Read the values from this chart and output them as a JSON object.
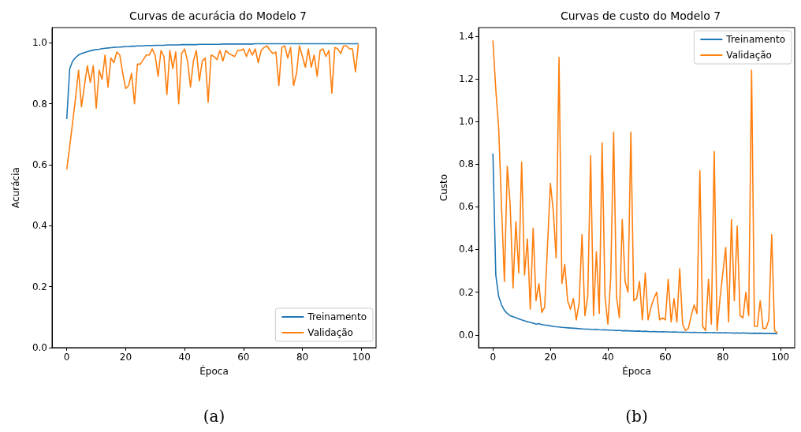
{
  "chart_data": [
    {
      "type": "line",
      "title": "Curvas de acurácia do Modelo 7",
      "xlabel": "Época",
      "ylabel": "Acurácia",
      "annotations": [
        "(a)"
      ],
      "legend": "bottom right",
      "grid": false,
      "x": [
        0,
        1,
        2,
        3,
        4,
        5,
        6,
        7,
        8,
        9,
        10,
        11,
        12,
        13,
        14,
        15,
        16,
        17,
        18,
        19,
        20,
        21,
        22,
        23,
        24,
        25,
        26,
        27,
        28,
        29,
        30,
        31,
        32,
        33,
        34,
        35,
        36,
        37,
        38,
        39,
        40,
        41,
        42,
        43,
        44,
        45,
        46,
        47,
        48,
        49,
        50,
        51,
        52,
        53,
        54,
        55,
        56,
        57,
        58,
        59,
        60,
        61,
        62,
        63,
        64,
        65,
        66,
        67,
        68,
        69,
        70,
        71,
        72,
        73,
        74,
        75,
        76,
        77,
        78,
        79,
        80,
        81,
        82,
        83,
        84,
        85,
        86,
        87,
        88,
        89,
        90,
        91,
        92,
        93,
        94,
        95,
        96,
        97,
        98,
        99
      ],
      "xlim": [
        -5,
        105
      ],
      "xticks": [
        0,
        20,
        40,
        60,
        80,
        100
      ],
      "ylim": [
        0,
        1.05
      ],
      "yticks": [
        {
          "value": 0,
          "label": "0.0"
        },
        {
          "value": 0.2,
          "label": "0.2"
        },
        {
          "value": 0.4,
          "label": "0.4"
        },
        {
          "value": 0.6,
          "label": "0.6"
        },
        {
          "value": 0.8,
          "label": "0.8"
        },
        {
          "value": 1,
          "label": "1.0"
        }
      ],
      "series": [
        {
          "name": "Treinamento",
          "color": "#1f77b4",
          "values": [
            0.75,
            0.915,
            0.94,
            0.952,
            0.96,
            0.965,
            0.968,
            0.971,
            0.974,
            0.976,
            0.978,
            0.979,
            0.981,
            0.982,
            0.983,
            0.984,
            0.985,
            0.986,
            0.986,
            0.987,
            0.988,
            0.988,
            0.989,
            0.989,
            0.99,
            0.99,
            0.99,
            0.991,
            0.991,
            0.991,
            0.992,
            0.992,
            0.992,
            0.992,
            0.993,
            0.993,
            0.993,
            0.993,
            0.993,
            0.994,
            0.994,
            0.994,
            0.994,
            0.994,
            0.994,
            0.995,
            0.995,
            0.995,
            0.995,
            0.995,
            0.995,
            0.995,
            0.995,
            0.996,
            0.996,
            0.996,
            0.996,
            0.996,
            0.996,
            0.996,
            0.996,
            0.996,
            0.996,
            0.996,
            0.997,
            0.997,
            0.997,
            0.997,
            0.997,
            0.997,
            0.997,
            0.997,
            0.997,
            0.997,
            0.997,
            0.997,
            0.997,
            0.997,
            0.997,
            0.997,
            0.997,
            0.997,
            0.997,
            0.997,
            0.997,
            0.997,
            0.997,
            0.997,
            0.997,
            0.997,
            0.997,
            0.997,
            0.997,
            0.997,
            0.997,
            0.997,
            0.997,
            0.997,
            0.997,
            0.997
          ]
        },
        {
          "name": "Validação",
          "color": "#ff7f0e",
          "values": [
            0.585,
            0.66,
            0.74,
            0.82,
            0.91,
            0.79,
            0.86,
            0.925,
            0.87,
            0.925,
            0.785,
            0.91,
            0.88,
            0.96,
            0.855,
            0.95,
            0.935,
            0.97,
            0.96,
            0.9,
            0.85,
            0.86,
            0.9,
            0.8,
            0.93,
            0.93,
            0.945,
            0.96,
            0.96,
            0.98,
            0.96,
            0.89,
            0.975,
            0.955,
            0.83,
            0.975,
            0.915,
            0.97,
            0.8,
            0.965,
            0.98,
            0.94,
            0.855,
            0.94,
            0.975,
            0.875,
            0.94,
            0.95,
            0.805,
            0.96,
            0.955,
            0.945,
            0.975,
            0.94,
            0.975,
            0.965,
            0.96,
            0.955,
            0.975,
            0.975,
            0.98,
            0.955,
            0.98,
            0.96,
            0.98,
            0.935,
            0.975,
            0.985,
            0.99,
            0.975,
            0.965,
            0.97,
            0.86,
            0.985,
            0.99,
            0.95,
            0.985,
            0.86,
            0.9,
            0.99,
            0.955,
            0.92,
            0.98,
            0.92,
            0.96,
            0.89,
            0.975,
            0.98,
            0.955,
            0.975,
            0.835,
            0.985,
            0.98,
            0.965,
            0.99,
            0.99,
            0.98,
            0.98,
            0.905,
            0.995
          ]
        }
      ]
    },
    {
      "type": "line",
      "title": "Curvas de custo do Modelo 7",
      "xlabel": "Época",
      "ylabel": "Custo",
      "annotations": [
        "(b)"
      ],
      "legend": "top right",
      "grid": false,
      "x": [
        0,
        1,
        2,
        3,
        4,
        5,
        6,
        7,
        8,
        9,
        10,
        11,
        12,
        13,
        14,
        15,
        16,
        17,
        18,
        19,
        20,
        21,
        22,
        23,
        24,
        25,
        26,
        27,
        28,
        29,
        30,
        31,
        32,
        33,
        34,
        35,
        36,
        37,
        38,
        39,
        40,
        41,
        42,
        43,
        44,
        45,
        46,
        47,
        48,
        49,
        50,
        51,
        52,
        53,
        54,
        55,
        56,
        57,
        58,
        59,
        60,
        61,
        62,
        63,
        64,
        65,
        66,
        67,
        68,
        69,
        70,
        71,
        72,
        73,
        74,
        75,
        76,
        77,
        78,
        79,
        80,
        81,
        82,
        83,
        84,
        85,
        86,
        87,
        88,
        89,
        90,
        91,
        92,
        93,
        94,
        95,
        96,
        97,
        98,
        99
      ],
      "xlim": [
        -5,
        105
      ],
      "xticks": [
        0,
        20,
        40,
        60,
        80,
        100
      ],
      "ylim": [
        -0.06,
        1.44
      ],
      "yticks": [
        {
          "value": 0,
          "label": "0.0"
        },
        {
          "value": 0.2,
          "label": "0.2"
        },
        {
          "value": 0.4,
          "label": "0.4"
        },
        {
          "value": 0.6,
          "label": "0.6"
        },
        {
          "value": 0.8,
          "label": "0.8"
        },
        {
          "value": 1,
          "label": "1.0"
        },
        {
          "value": 1.2,
          "label": "1.2"
        },
        {
          "value": 1.4,
          "label": "1.4"
        }
      ],
      "series": [
        {
          "name": "Treinamento",
          "color": "#1f77b4",
          "values": [
            0.85,
            0.28,
            0.18,
            0.14,
            0.115,
            0.1,
            0.09,
            0.085,
            0.08,
            0.075,
            0.07,
            0.066,
            0.062,
            0.058,
            0.055,
            0.05,
            0.053,
            0.048,
            0.046,
            0.045,
            0.042,
            0.04,
            0.038,
            0.037,
            0.035,
            0.034,
            0.033,
            0.032,
            0.031,
            0.03,
            0.029,
            0.028,
            0.027,
            0.027,
            0.026,
            0.025,
            0.026,
            0.024,
            0.023,
            0.024,
            0.022,
            0.022,
            0.021,
            0.02,
            0.021,
            0.019,
            0.02,
            0.019,
            0.018,
            0.018,
            0.017,
            0.018,
            0.016,
            0.017,
            0.016,
            0.015,
            0.016,
            0.015,
            0.014,
            0.015,
            0.014,
            0.014,
            0.013,
            0.014,
            0.013,
            0.012,
            0.013,
            0.012,
            0.012,
            0.011,
            0.012,
            0.011,
            0.011,
            0.01,
            0.011,
            0.01,
            0.01,
            0.011,
            0.009,
            0.01,
            0.009,
            0.01,
            0.009,
            0.009,
            0.008,
            0.009,
            0.008,
            0.009,
            0.008,
            0.008,
            0.007,
            0.008,
            0.007,
            0.008,
            0.007,
            0.007,
            0.007,
            0.006,
            0.007,
            0.005
          ]
        },
        {
          "name": "Validação",
          "color": "#ff7f0e",
          "values": [
            1.38,
            1.15,
            0.97,
            0.6,
            0.25,
            0.79,
            0.61,
            0.22,
            0.53,
            0.29,
            0.81,
            0.28,
            0.45,
            0.12,
            0.5,
            0.16,
            0.24,
            0.105,
            0.13,
            0.42,
            0.71,
            0.58,
            0.36,
            1.3,
            0.24,
            0.33,
            0.16,
            0.12,
            0.17,
            0.07,
            0.15,
            0.47,
            0.09,
            0.18,
            0.84,
            0.09,
            0.39,
            0.1,
            0.9,
            0.18,
            0.05,
            0.27,
            0.95,
            0.18,
            0.08,
            0.54,
            0.25,
            0.2,
            0.95,
            0.16,
            0.17,
            0.25,
            0.07,
            0.29,
            0.07,
            0.13,
            0.17,
            0.2,
            0.07,
            0.08,
            0.07,
            0.26,
            0.06,
            0.17,
            0.06,
            0.31,
            0.05,
            0.02,
            0.03,
            0.09,
            0.14,
            0.1,
            0.77,
            0.04,
            0.02,
            0.26,
            0.05,
            0.86,
            0.02,
            0.17,
            0.29,
            0.41,
            0.06,
            0.54,
            0.16,
            0.51,
            0.09,
            0.08,
            0.2,
            0.09,
            1.24,
            0.04,
            0.04,
            0.16,
            0.03,
            0.03,
            0.07,
            0.47,
            0.02,
            0.01
          ]
        }
      ]
    }
  ]
}
